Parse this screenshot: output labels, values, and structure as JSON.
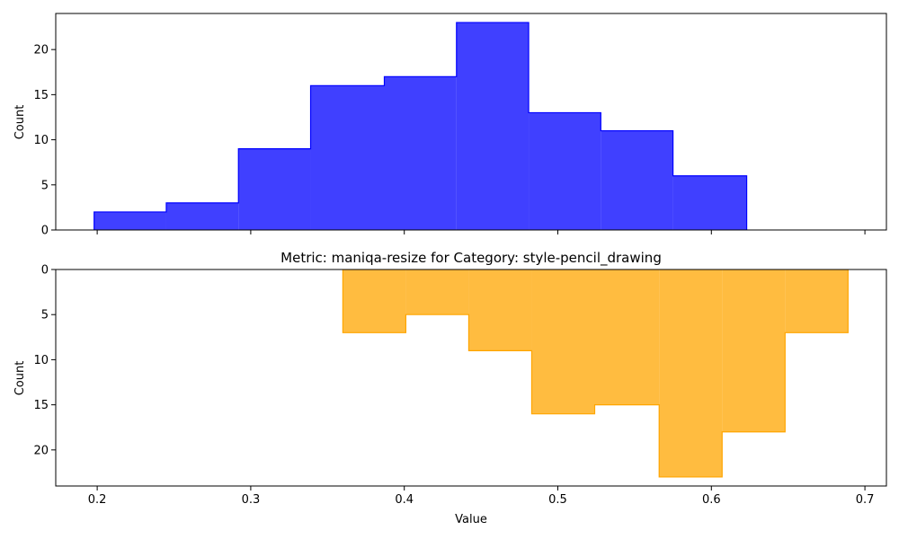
{
  "chart_data": [
    {
      "type": "histogram",
      "title": "",
      "xlabel": "",
      "ylabel": "Count",
      "ylim": [
        0,
        24
      ],
      "yticks": [
        0,
        5,
        10,
        15,
        20
      ],
      "y_inverted": false,
      "bin_edges": [
        0.198,
        0.245,
        0.292,
        0.339,
        0.387,
        0.434,
        0.481,
        0.528,
        0.575,
        0.623
      ],
      "counts": [
        2,
        3,
        9,
        16,
        17,
        23,
        13,
        11,
        6
      ],
      "color": "#0000ff",
      "edge_color": "#0000ff",
      "opacity": 0.75
    },
    {
      "type": "histogram",
      "title": "Metric: maniqa-resize for Category: style-pencil_drawing",
      "xlabel": "Value",
      "ylabel": "Count",
      "ylim": [
        0,
        24
      ],
      "yticks": [
        0,
        5,
        10,
        15,
        20
      ],
      "y_inverted": true,
      "bin_edges": [
        0.36,
        0.401,
        0.442,
        0.483,
        0.524,
        0.566,
        0.607,
        0.648,
        0.689
      ],
      "counts": [
        7,
        5,
        9,
        16,
        15,
        23,
        18,
        7
      ],
      "color": "#ffa500",
      "edge_color": "#ffa500",
      "opacity": 0.75
    }
  ],
  "shared_x": {
    "xlim": [
      0.173,
      0.714
    ],
    "ticks": [
      0.2,
      0.3,
      0.4,
      0.5,
      0.6,
      0.7
    ],
    "tick_labels": [
      "0.2",
      "0.3",
      "0.4",
      "0.5",
      "0.6",
      "0.7"
    ]
  }
}
